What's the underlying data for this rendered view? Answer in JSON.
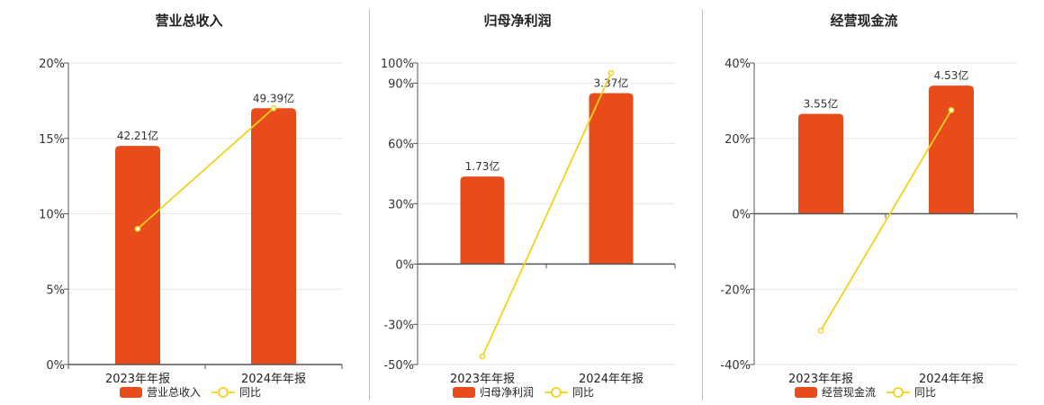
{
  "colors": {
    "bar": "#e84c1b",
    "line": "#f2d21a",
    "grid": "#e6e6e6",
    "axis": "#555555",
    "separator": "#bfbfbf"
  },
  "chart_data": [
    {
      "type": "bar",
      "title": "营业总收入",
      "categories": [
        "2023年年报",
        "2024年年报"
      ],
      "bar_labels": [
        "42.21亿",
        "49.39亿"
      ],
      "legend": {
        "bar": "营业总收入",
        "line": "同比",
        "position": "bottom"
      },
      "y_ticks": [
        "0%",
        "5%",
        "10%",
        "15%",
        "20%"
      ],
      "ylim": [
        0,
        20
      ],
      "bars": [
        14.5,
        17.0
      ],
      "line_values": [
        9.0,
        17.0
      ],
      "grid": true
    },
    {
      "type": "bar",
      "title": "归母净利润",
      "categories": [
        "2023年年报",
        "2024年年报"
      ],
      "bar_labels": [
        "1.73亿",
        "3.37亿"
      ],
      "legend": {
        "bar": "归母净利润",
        "line": "同比",
        "position": "bottom"
      },
      "y_ticks": [
        "-50%",
        "-30%",
        "0%",
        "30%",
        "60%",
        "90%",
        "100%"
      ],
      "y_tick_values": [
        -50,
        -30,
        0,
        30,
        60,
        90,
        100
      ],
      "ylim": [
        -50,
        100
      ],
      "bars": [
        43.5,
        85.0
      ],
      "line_values": [
        -46.0,
        95.0
      ],
      "grid": true
    },
    {
      "type": "bar",
      "title": "经营现金流",
      "categories": [
        "2023年年报",
        "2024年年报"
      ],
      "bar_labels": [
        "3.55亿",
        "4.53亿"
      ],
      "legend": {
        "bar": "经营现金流",
        "line": "同比",
        "position": "bottom"
      },
      "y_ticks": [
        "-40%",
        "-20%",
        "0%",
        "20%",
        "40%"
      ],
      "y_tick_values": [
        -40,
        -20,
        0,
        20,
        40
      ],
      "ylim": [
        -40,
        40
      ],
      "bars": [
        26.5,
        34.0
      ],
      "line_values": [
        -31.0,
        27.5
      ],
      "grid": true
    }
  ]
}
